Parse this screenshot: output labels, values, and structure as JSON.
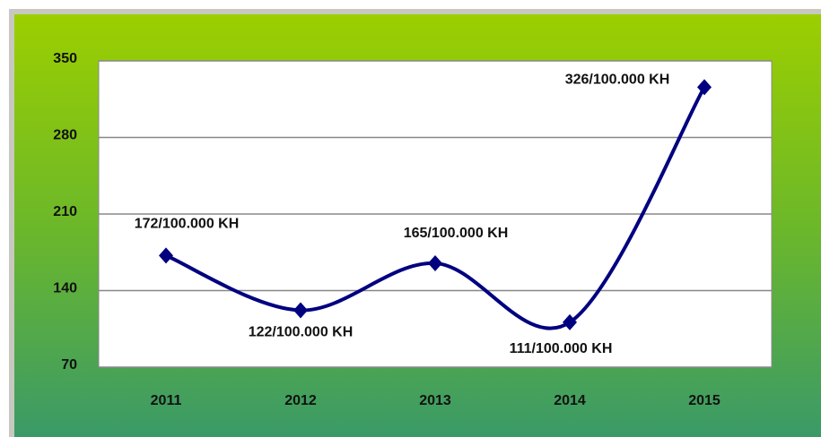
{
  "chart_data": {
    "type": "line",
    "categories": [
      "2011",
      "2012",
      "2013",
      "2014",
      "2015"
    ],
    "series": [
      {
        "name": "KH",
        "color": "#000080",
        "values": [
          172,
          122,
          165,
          111,
          326
        ],
        "value_labels": [
          "172/100.000 KH",
          "122/100.000 KH",
          "165/100.000 KH",
          "111/100.000 KH",
          "326/100.000 KH"
        ]
      }
    ],
    "ylim": [
      70,
      350
    ],
    "yticks": [
      70,
      140,
      210,
      280,
      350
    ],
    "grid": true,
    "smooth": true
  }
}
